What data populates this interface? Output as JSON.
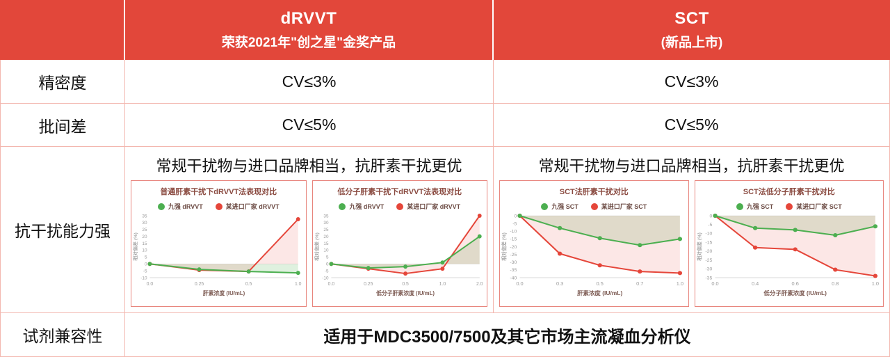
{
  "header": {
    "drvvt": {
      "title": "dRVVT",
      "subtitle": "荣获2021年\"创之星\"金奖产品"
    },
    "sct": {
      "title": "SCT",
      "subtitle": "(新品上市)"
    }
  },
  "rows": {
    "precision": {
      "label": "精密度",
      "drvvt": "CV≤3%",
      "sct": "CV≤3%"
    },
    "batch": {
      "label": "批间差",
      "drvvt": "CV≤5%",
      "sct": "CV≤5%"
    },
    "interference": {
      "label": "抗干扰能力强",
      "drvvt_note": "常规干扰物与进口品牌相当，抗肝素干扰更优",
      "sct_note": "常规干扰物与进口品牌相当，抗肝素干扰更优"
    },
    "compatibility": {
      "label": "试剂兼容性",
      "value": "适用于MDC3500/7500及其它市场主流凝血分析仪"
    }
  },
  "colors": {
    "header_red": "#e2473a",
    "grid_pink": "#f3b7af",
    "chart_border": "#e8857d",
    "series_green": "#4CAF50",
    "series_red": "#E5463A"
  },
  "chart_data": [
    {
      "type": "line",
      "title": "普通肝素干扰下dRVVT法表现对比",
      "xlabel": "肝素浓度 (IU/mL)",
      "ylabel": "相对偏差 (%)",
      "categories": [
        "0.0",
        "0.25",
        "0.5",
        "1.0"
      ],
      "ylim": [
        -10,
        35
      ],
      "ytick": 5,
      "grid": false,
      "legend_position": "top",
      "series": [
        {
          "name": "九强 dRVVT",
          "color": "#4CAF50",
          "values": [
            0,
            -4,
            -5.5,
            -6.5
          ]
        },
        {
          "name": "某进口厂家 dRVVT",
          "color": "#E5463A",
          "values": [
            0,
            -4.5,
            -5.5,
            32.5
          ]
        }
      ]
    },
    {
      "type": "line",
      "title": "低分子肝素干扰下dRVVT法表现对比",
      "xlabel": "低分子肝素浓度 (IU/mL)",
      "ylabel": "相对偏差 (%)",
      "categories": [
        "0.0",
        "0.25",
        "0.5",
        "1.0",
        "2.0"
      ],
      "ylim": [
        -10,
        35
      ],
      "ytick": 5,
      "grid": false,
      "legend_position": "top",
      "series": [
        {
          "name": "九强 dRVVT",
          "color": "#4CAF50",
          "values": [
            0,
            -3,
            -2,
            1,
            20
          ]
        },
        {
          "name": "某进口厂家 dRVVT",
          "color": "#E5463A",
          "values": [
            0,
            -3.5,
            -7,
            -3.5,
            35
          ]
        }
      ]
    },
    {
      "type": "line",
      "title": "SCT法肝素干扰对比",
      "xlabel": "肝素浓度 (IU/mL)",
      "ylabel": "相对偏差 (%)",
      "categories": [
        "0.0",
        "0.3",
        "0.5",
        "0.7",
        "1.0"
      ],
      "ylim": [
        -40,
        0
      ],
      "ytick": 5,
      "grid": false,
      "legend_position": "top",
      "series": [
        {
          "name": "九强 SCT",
          "color": "#4CAF50",
          "values": [
            0,
            -8,
            -14.5,
            -19,
            -15
          ]
        },
        {
          "name": "某进口厂家 SCT",
          "color": "#E5463A",
          "values": [
            0,
            -24.5,
            -32,
            -36,
            -37
          ]
        }
      ]
    },
    {
      "type": "line",
      "title": "SCT法低分子肝素干扰对比",
      "xlabel": "低分子肝素浓度 (IU/mL)",
      "ylabel": "相对偏差 (%)",
      "categories": [
        "0.0",
        "0.4",
        "0.6",
        "0.8",
        "1.0"
      ],
      "ylim": [
        -35,
        0
      ],
      "ytick": 5,
      "grid": false,
      "legend_position": "top",
      "series": [
        {
          "name": "九强 SCT",
          "color": "#4CAF50",
          "values": [
            0,
            -7,
            -8,
            -11,
            -6
          ]
        },
        {
          "name": "某进口厂家 SCT",
          "color": "#E5463A",
          "values": [
            0,
            -18,
            -19,
            -30.5,
            -34
          ]
        }
      ]
    }
  ]
}
